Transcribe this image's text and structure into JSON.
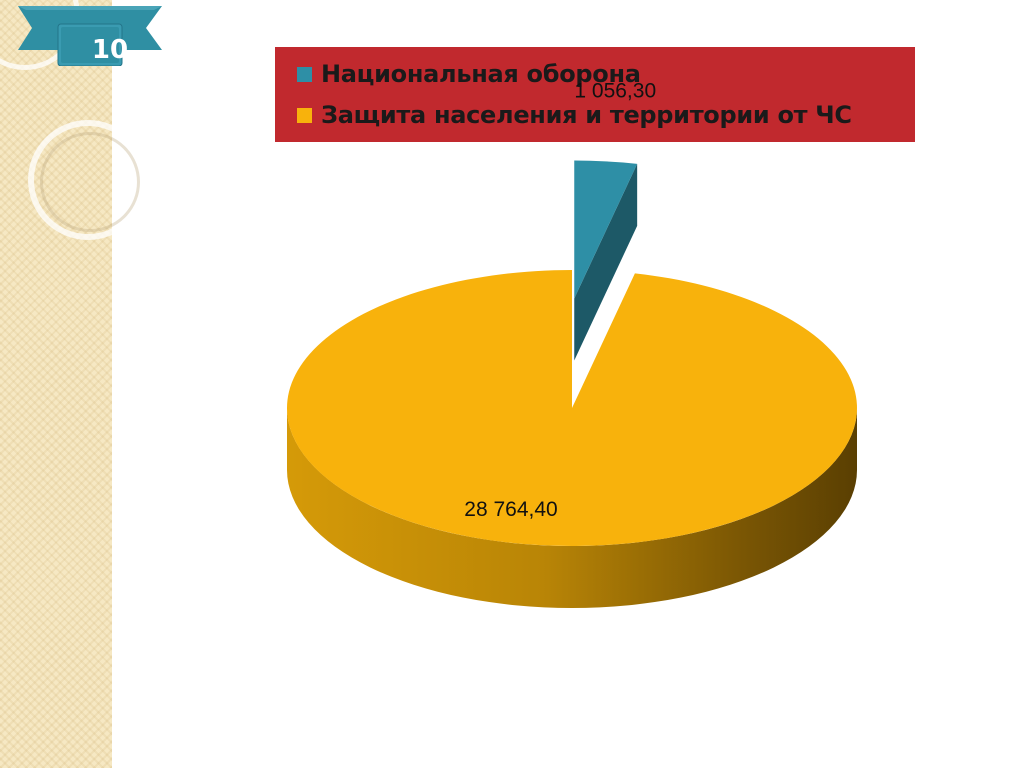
{
  "slide": {
    "page_number": "10"
  },
  "colors": {
    "legend_background": "#c1292e",
    "accent_teal": "#2e8fa6",
    "accent_gold": "#f8b20c"
  },
  "chart_data": {
    "type": "pie",
    "title": "",
    "three_d": true,
    "legend_position": "top",
    "series": [
      {
        "values": [
          1056.3,
          28764.4
        ]
      }
    ],
    "categories": [
      "Национальная оборона",
      "Защита населения и территории от ЧС"
    ],
    "slices": [
      {
        "label": "Национальная оборона",
        "value": 1056.3,
        "value_label": "1 056,30",
        "color": "#2e8fa6",
        "exploded": true
      },
      {
        "label": "Защита населения и территории от ЧС",
        "value": 28764.4,
        "value_label": "28 764,40",
        "color": "#f8b20c",
        "exploded": false
      }
    ]
  }
}
